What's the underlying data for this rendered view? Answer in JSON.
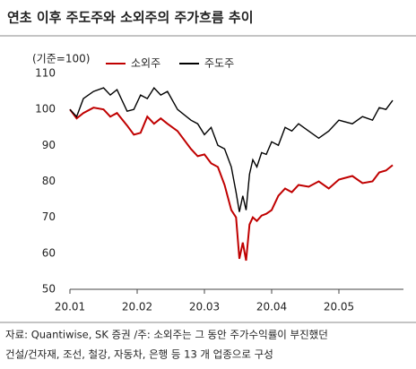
{
  "chart_data": {
    "type": "line",
    "title": "연초 이후 주도주와 소외주의 주가흐름 추이",
    "ylabel": "(기준=100)",
    "notes": [
      "자료: Quantiwise, SK 증권 /주: 소외주는 그 동안 주가수익률이 부진했던",
      "건설/건자재, 조선, 철강, 자동차, 은행 등 13 개 업종으로 구성"
    ],
    "x": [
      1.0,
      1.1,
      1.2,
      1.35,
      1.5,
      1.6,
      1.7,
      1.85,
      1.95,
      2.05,
      2.15,
      2.25,
      2.35,
      2.45,
      2.6,
      2.8,
      2.9,
      3.0,
      3.1,
      3.2,
      3.3,
      3.4,
      3.47,
      3.52,
      3.57,
      3.62,
      3.67,
      3.72,
      3.78,
      3.85,
      3.92,
      4.0,
      4.1,
      4.2,
      4.3,
      4.4,
      4.55,
      4.7,
      4.85,
      5.0,
      5.2,
      5.35,
      5.5,
      5.6,
      5.7,
      5.8
    ],
    "series": [
      {
        "name": "소외주",
        "color": "#c00000",
        "values": [
          100,
          97.5,
          99,
          100.5,
          100,
          98,
          99,
          95.5,
          93,
          93.5,
          98,
          96,
          97.5,
          96,
          94,
          89,
          87,
          87.5,
          85,
          84,
          79,
          72,
          70,
          58.5,
          63,
          58,
          68,
          70,
          69,
          70.5,
          71,
          72,
          76,
          78,
          77,
          79,
          78.5,
          80,
          78,
          80.5,
          81.5,
          79.5,
          80,
          82.5,
          83,
          84.5
        ]
      },
      {
        "name": "주도주",
        "color": "#000000",
        "values": [
          100,
          98,
          103,
          105,
          106,
          104,
          105.5,
          99.5,
          100,
          104,
          103,
          106,
          104,
          105,
          100,
          97,
          96,
          93,
          95,
          90,
          89,
          84,
          77,
          71.5,
          76,
          72,
          82,
          86,
          84,
          88,
          87.5,
          91,
          90,
          95,
          94,
          96,
          94,
          92,
          94,
          97,
          96,
          98,
          97,
          100.5,
          100,
          102.5
        ]
      }
    ],
    "xlim": [
      1,
      5.96
    ],
    "xticks": [
      {
        "value": 1,
        "label": "20.01"
      },
      {
        "value": 2,
        "label": "20.02"
      },
      {
        "value": 3,
        "label": "20.03"
      },
      {
        "value": 4,
        "label": "20.04"
      },
      {
        "value": 5,
        "label": "20.05"
      }
    ],
    "ylim": [
      50,
      110
    ],
    "yticks": [
      50,
      60,
      70,
      80,
      90,
      100,
      110
    ]
  }
}
